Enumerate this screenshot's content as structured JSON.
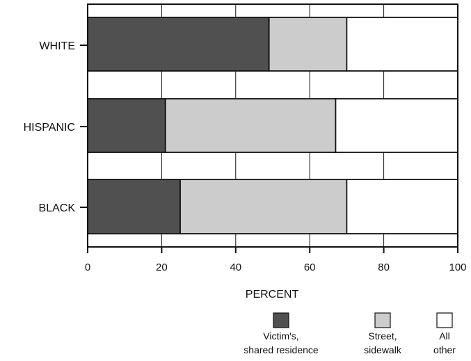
{
  "chart_data": {
    "type": "bar",
    "orientation": "horizontal",
    "stacked": true,
    "categories": [
      "WHITE",
      "HISPANIC",
      "BLACK"
    ],
    "series": [
      {
        "name": "Victim's, shared residence",
        "values": [
          49,
          21,
          25
        ],
        "color": "#505050"
      },
      {
        "name": "Street, sidewalk",
        "values": [
          21,
          46,
          45
        ],
        "color": "#cccccc"
      },
      {
        "name": "All other",
        "values": [
          30,
          33,
          30
        ],
        "color": "#ffffff"
      }
    ],
    "legend_labels": [
      [
        "Victim's,",
        "shared residence"
      ],
      [
        "Street,",
        "sidewalk"
      ],
      [
        "All",
        "other"
      ]
    ],
    "xlabel": "PERCENT",
    "xlim": [
      0,
      100
    ],
    "xticks": [
      0,
      20,
      40,
      60,
      80,
      100
    ],
    "grid": true,
    "legend_position": "bottom-right"
  }
}
